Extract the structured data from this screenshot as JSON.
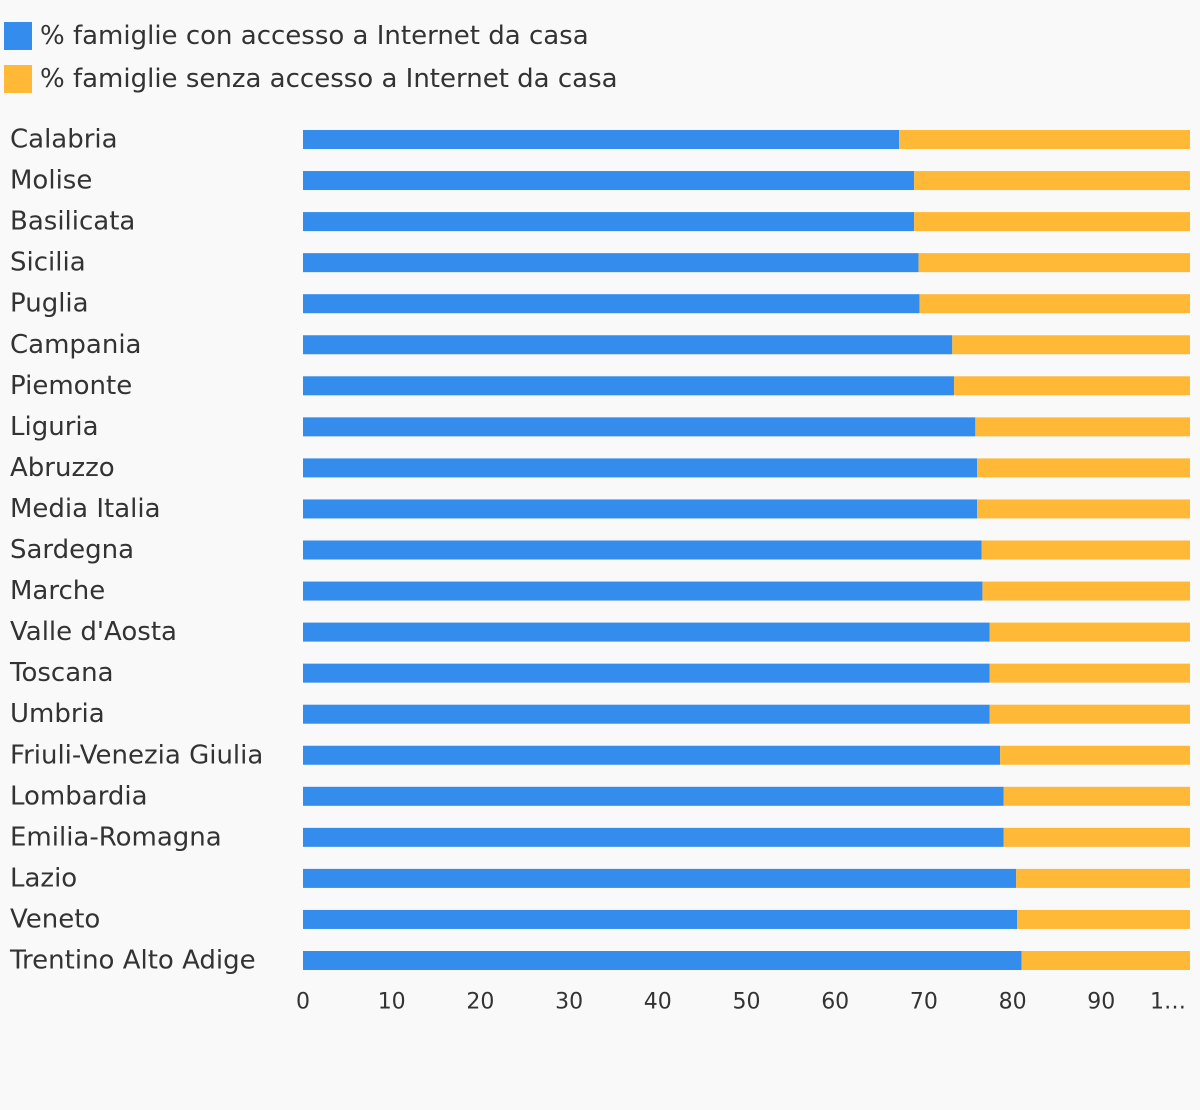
{
  "chart_data": {
    "type": "bar",
    "orientation": "horizontal",
    "stacked": true,
    "categories": [
      "Calabria",
      "Molise",
      "Basilicata",
      "Sicilia",
      "Puglia",
      "Campania",
      "Piemonte",
      "Liguria",
      "Abruzzo",
      "Media Italia",
      "Sardegna",
      "Marche",
      "Valle d'Aosta",
      "Toscana",
      "Umbria",
      "Friuli-Venezia Giulia",
      "Lombardia",
      "Emilia-Romagna",
      "Lazio",
      "Veneto",
      "Trentino Alto Adige"
    ],
    "series": [
      {
        "name": "% famiglie con accesso a Internet da casa",
        "color": "#348cec",
        "values": [
          67.2,
          68.9,
          68.9,
          69.4,
          69.5,
          73.2,
          73.4,
          75.8,
          76.0,
          76.0,
          76.5,
          76.6,
          77.4,
          77.4,
          77.4,
          78.6,
          79.0,
          79.0,
          80.4,
          80.5,
          81.0
        ]
      },
      {
        "name": "% famiglie senza accesso a Internet da casa",
        "color": "#ffb937",
        "values": [
          32.8,
          31.1,
          31.1,
          30.6,
          30.5,
          26.8,
          26.6,
          24.2,
          24.0,
          24.0,
          23.5,
          23.4,
          22.6,
          22.6,
          22.6,
          21.4,
          21.0,
          21.0,
          19.6,
          19.5,
          19.0
        ]
      }
    ],
    "xlim": [
      0,
      100
    ],
    "xticks": [
      "0",
      "10",
      "20",
      "30",
      "40",
      "50",
      "60",
      "70",
      "80",
      "90",
      "1…"
    ],
    "title": "",
    "xlabel": "",
    "ylabel": "",
    "grid": false,
    "legend_position": "top-left"
  }
}
